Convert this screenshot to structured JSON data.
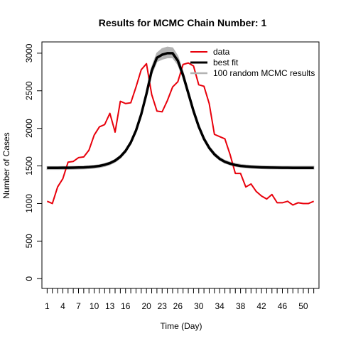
{
  "chart_data": {
    "type": "line",
    "title": "Results for MCMC Chain Number: 1",
    "xlabel": "Time (Day)",
    "ylabel": "Number of Cases",
    "xlim": [
      0,
      53
    ],
    "ylim": [
      -130,
      3150
    ],
    "x_tick_values": [
      1,
      2,
      3,
      4,
      5,
      6,
      7,
      8,
      9,
      10,
      11,
      12,
      13,
      14,
      15,
      16,
      17,
      18,
      19,
      20,
      21,
      22,
      23,
      24,
      25,
      26,
      27,
      28,
      29,
      30,
      31,
      32,
      33,
      34,
      35,
      36,
      37,
      38,
      39,
      40,
      41,
      42,
      43,
      44,
      45,
      46,
      47,
      48,
      49,
      50,
      51,
      52
    ],
    "x_tick_labels": [
      "1",
      "4",
      "7",
      "10",
      "13",
      "16",
      "20",
      "23",
      "26",
      "30",
      "34",
      "38",
      "42",
      "46",
      "50"
    ],
    "y_ticks": [
      0,
      500,
      1000,
      1500,
      2000,
      2500,
      3000
    ],
    "grid": false,
    "legend_position": "top-right",
    "x": [
      1,
      2,
      3,
      4,
      5,
      6,
      7,
      8,
      9,
      10,
      11,
      12,
      13,
      14,
      15,
      16,
      17,
      18,
      19,
      20,
      21,
      22,
      23,
      24,
      25,
      26,
      27,
      28,
      29,
      30,
      31,
      32,
      33,
      34,
      35,
      36,
      37,
      38,
      39,
      40,
      41,
      42,
      43,
      44,
      45,
      46,
      47,
      48,
      49,
      50,
      51,
      52
    ],
    "series": [
      {
        "name": "data",
        "color": "#e8000b",
        "values": [
          1030,
          1000,
          1220,
          1330,
          1550,
          1560,
          1610,
          1620,
          1710,
          1910,
          2020,
          2050,
          2200,
          1950,
          2360,
          2330,
          2340,
          2550,
          2780,
          2860,
          2450,
          2230,
          2220,
          2370,
          2550,
          2620,
          2850,
          2870,
          2830,
          2580,
          2560,
          2330,
          1920,
          1890,
          1860,
          1650,
          1400,
          1400,
          1220,
          1260,
          1160,
          1100,
          1060,
          1120,
          1010,
          1010,
          1030,
          980,
          1010,
          1000,
          1000,
          1030
        ]
      },
      {
        "name": "best fit",
        "color": "#000000",
        "values": [
          1475,
          1475,
          1475,
          1476,
          1476,
          1477,
          1479,
          1481,
          1485,
          1491,
          1500,
          1515,
          1537,
          1571,
          1623,
          1700,
          1812,
          1971,
          2187,
          2460,
          2767,
          2940,
          2980,
          3000,
          3000,
          2900,
          2708,
          2468,
          2230,
          2023,
          1860,
          1740,
          1654,
          1594,
          1555,
          1530,
          1512,
          1500,
          1493,
          1488,
          1484,
          1481,
          1479,
          1478,
          1477,
          1476,
          1476,
          1475,
          1475,
          1475,
          1475,
          1475
        ]
      },
      {
        "name": "100 random MCMC results",
        "color": "#b3b3b3",
        "band_lower": [
          1455,
          1455,
          1455,
          1456,
          1456,
          1457,
          1459,
          1461,
          1465,
          1471,
          1480,
          1495,
          1517,
          1551,
          1603,
          1680,
          1792,
          1951,
          2167,
          2430,
          2720,
          2890,
          2920,
          2940,
          2940,
          2850,
          2670,
          2435,
          2200,
          1998,
          1838,
          1720,
          1636,
          1577,
          1538,
          1514,
          1496,
          1484,
          1477,
          1472,
          1468,
          1465,
          1463,
          1462,
          1461,
          1460,
          1460,
          1459,
          1459,
          1459,
          1459,
          1459
        ],
        "band_upper": [
          1490,
          1490,
          1490,
          1491,
          1491,
          1492,
          1494,
          1496,
          1500,
          1506,
          1515,
          1530,
          1552,
          1586,
          1638,
          1715,
          1827,
          1986,
          2207,
          2490,
          2810,
          3000,
          3060,
          3080,
          3070,
          2960,
          2750,
          2505,
          2262,
          2050,
          1884,
          1762,
          1675,
          1613,
          1574,
          1549,
          1531,
          1519,
          1511,
          1506,
          1502,
          1499,
          1497,
          1496,
          1495,
          1494,
          1494,
          1493,
          1493,
          1493,
          1493,
          1493
        ]
      }
    ]
  }
}
